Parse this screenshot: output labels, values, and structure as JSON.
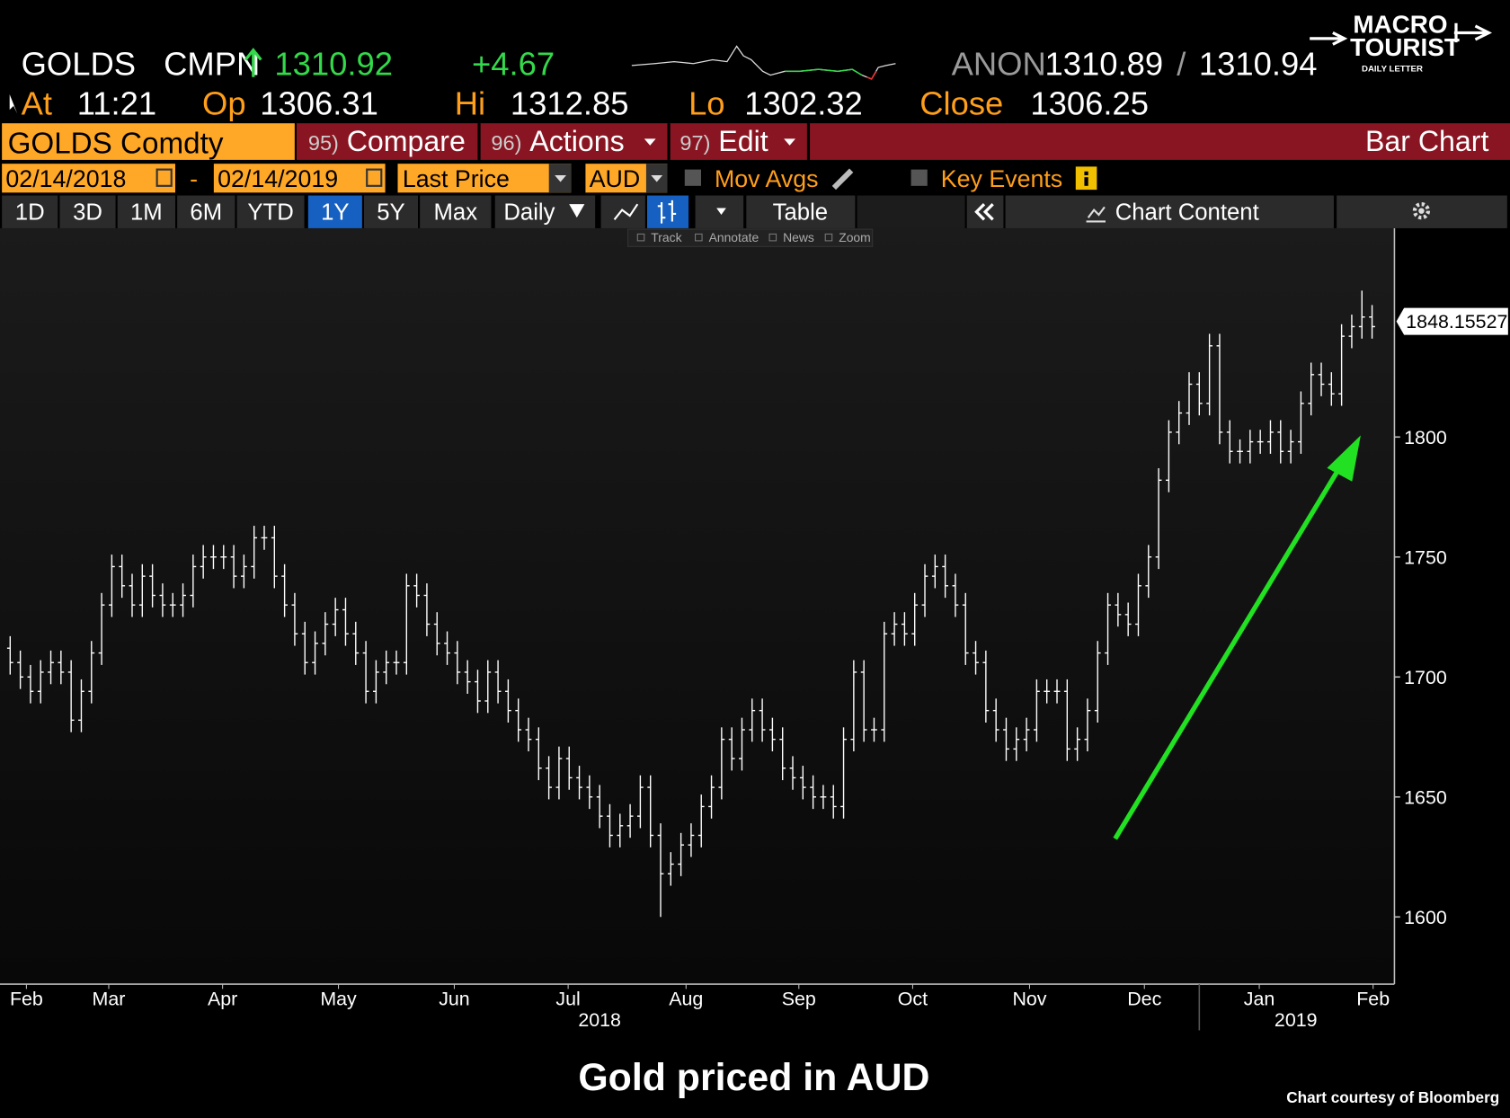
{
  "header": {
    "ticker": "GOLDS",
    "source": "CMPN",
    "last": 1310.92,
    "change": "+4.67",
    "pricing_source": "ANON",
    "bid": 1310.89,
    "separator": "/",
    "ask": 1310.94,
    "at_label": "At",
    "time": "11:21",
    "open_label": "Op",
    "open": 1306.31,
    "hi_label": "Hi",
    "high": 1312.85,
    "lo_label": "Lo",
    "low": 1302.32,
    "close_label": "Close",
    "close": 1306.25
  },
  "logo": {
    "line1": "MACRO",
    "line2": "TOURIST",
    "line3": "DAILY LETTER"
  },
  "toolbar": {
    "security": "GOLDS Comdty",
    "menu": [
      {
        "key": "95)",
        "label": "Compare"
      },
      {
        "key": "96)",
        "label": "Actions"
      },
      {
        "key": "97)",
        "label": "Edit"
      }
    ],
    "chart_type": "Bar Chart",
    "start_date": "02/14/2018",
    "dash": "-",
    "end_date": "02/14/2019",
    "field": "Last Price",
    "currency": "AUD",
    "mov_avgs": "Mov Avgs",
    "key_events": "Key Events",
    "periods": [
      "1D",
      "3D",
      "1M",
      "6M",
      "YTD",
      "1Y",
      "5Y",
      "Max"
    ],
    "active_period": 5,
    "frequency": "Daily",
    "table": "Table",
    "chart_content": "Chart Content",
    "tools": [
      "Track",
      "Annotate",
      "News",
      "Zoom"
    ]
  },
  "chart_data": {
    "type": "ohlc",
    "color": "#ffffff",
    "open": [
      1712,
      1706,
      1700,
      1694,
      1702,
      1706,
      1702,
      1682,
      1694,
      1710,
      1730,
      1746,
      1738,
      1730,
      1742,
      1734,
      1730,
      1730,
      1734,
      1746,
      1750,
      1750,
      1750,
      1742,
      1746,
      1758,
      1758,
      1742,
      1730,
      1718,
      1706,
      1714,
      1722,
      1728,
      1718,
      1710,
      1694,
      1702,
      1706,
      1706,
      1738,
      1734,
      1722,
      1714,
      1710,
      1702,
      1698,
      1690,
      1702,
      1694,
      1686,
      1678,
      1674,
      1662,
      1654,
      1666,
      1658,
      1654,
      1650,
      1642,
      1634,
      1638,
      1642,
      1654,
      1634,
      1618,
      1622,
      1630,
      1634,
      1646,
      1654,
      1674,
      1666,
      1678,
      1686,
      1678,
      1674,
      1662,
      1658,
      1654,
      1650,
      1650,
      1646,
      1674,
      1702,
      1678,
      1678,
      1718,
      1722,
      1718,
      1730,
      1742,
      1746,
      1738,
      1730,
      1710,
      1706,
      1686,
      1678,
      1670,
      1674,
      1678,
      1694,
      1694,
      1694,
      1670,
      1674,
      1686,
      1710,
      1730,
      1726,
      1722,
      1738,
      1750,
      1782,
      1802,
      1810,
      1822,
      1814,
      1838,
      1802,
      1794,
      1794,
      1798,
      1798,
      1802,
      1794,
      1798,
      1814,
      1826,
      1822,
      1818,
      1842,
      1846,
      1850
    ],
    "high": [
      1717,
      1711,
      1705,
      1707,
      1711,
      1711,
      1707,
      1699,
      1715,
      1735,
      1751,
      1751,
      1743,
      1747,
      1747,
      1739,
      1735,
      1739,
      1751,
      1755,
      1755,
      1755,
      1755,
      1751,
      1763,
      1763,
      1763,
      1747,
      1735,
      1723,
      1719,
      1727,
      1733,
      1733,
      1723,
      1715,
      1707,
      1711,
      1711,
      1743,
      1743,
      1739,
      1727,
      1719,
      1715,
      1707,
      1703,
      1707,
      1707,
      1699,
      1691,
      1683,
      1679,
      1667,
      1671,
      1671,
      1663,
      1659,
      1655,
      1647,
      1643,
      1647,
      1659,
      1659,
      1639,
      1627,
      1635,
      1639,
      1651,
      1659,
      1679,
      1679,
      1683,
      1691,
      1691,
      1683,
      1679,
      1667,
      1663,
      1659,
      1655,
      1655,
      1679,
      1707,
      1707,
      1683,
      1723,
      1727,
      1727,
      1735,
      1747,
      1751,
      1751,
      1743,
      1735,
      1715,
      1711,
      1691,
      1683,
      1679,
      1683,
      1699,
      1699,
      1699,
      1699,
      1679,
      1691,
      1715,
      1735,
      1735,
      1731,
      1743,
      1755,
      1787,
      1807,
      1815,
      1827,
      1827,
      1843,
      1843,
      1807,
      1799,
      1803,
      1803,
      1807,
      1807,
      1803,
      1819,
      1831,
      1831,
      1827,
      1847,
      1851,
      1861,
      1855
    ],
    "low": [
      1701,
      1695,
      1689,
      1689,
      1697,
      1697,
      1677,
      1677,
      1689,
      1705,
      1725,
      1733,
      1725,
      1725,
      1729,
      1725,
      1725,
      1725,
      1729,
      1741,
      1745,
      1745,
      1737,
      1737,
      1741,
      1753,
      1737,
      1725,
      1713,
      1701,
      1701,
      1709,
      1717,
      1713,
      1705,
      1689,
      1689,
      1697,
      1701,
      1701,
      1729,
      1717,
      1709,
      1705,
      1697,
      1693,
      1685,
      1685,
      1689,
      1681,
      1673,
      1669,
      1657,
      1649,
      1649,
      1653,
      1649,
      1645,
      1637,
      1629,
      1629,
      1633,
      1637,
      1629,
      1600,
      1613,
      1617,
      1625,
      1629,
      1641,
      1649,
      1661,
      1661,
      1673,
      1673,
      1669,
      1657,
      1653,
      1649,
      1645,
      1645,
      1641,
      1641,
      1669,
      1673,
      1673,
      1673,
      1713,
      1713,
      1713,
      1725,
      1737,
      1733,
      1725,
      1705,
      1701,
      1681,
      1673,
      1665,
      1665,
      1669,
      1673,
      1689,
      1689,
      1665,
      1665,
      1669,
      1681,
      1705,
      1721,
      1717,
      1717,
      1733,
      1745,
      1777,
      1797,
      1805,
      1809,
      1809,
      1797,
      1789,
      1789,
      1789,
      1793,
      1793,
      1789,
      1789,
      1793,
      1809,
      1817,
      1813,
      1813,
      1837,
      1841,
      1841
    ],
    "close": [
      1706,
      1700,
      1694,
      1702,
      1706,
      1702,
      1682,
      1694,
      1710,
      1730,
      1746,
      1738,
      1730,
      1742,
      1734,
      1730,
      1730,
      1734,
      1746,
      1750,
      1750,
      1750,
      1742,
      1746,
      1758,
      1758,
      1742,
      1730,
      1718,
      1706,
      1714,
      1722,
      1728,
      1718,
      1710,
      1694,
      1702,
      1706,
      1706,
      1738,
      1734,
      1722,
      1714,
      1710,
      1702,
      1698,
      1690,
      1702,
      1694,
      1686,
      1678,
      1674,
      1662,
      1654,
      1666,
      1658,
      1654,
      1650,
      1642,
      1634,
      1638,
      1642,
      1654,
      1634,
      1618,
      1622,
      1630,
      1634,
      1646,
      1654,
      1674,
      1666,
      1678,
      1686,
      1678,
      1674,
      1662,
      1658,
      1654,
      1650,
      1650,
      1646,
      1674,
      1702,
      1678,
      1678,
      1718,
      1722,
      1718,
      1730,
      1742,
      1746,
      1738,
      1730,
      1710,
      1706,
      1686,
      1678,
      1670,
      1674,
      1678,
      1694,
      1694,
      1694,
      1670,
      1674,
      1686,
      1710,
      1730,
      1726,
      1722,
      1738,
      1750,
      1782,
      1802,
      1810,
      1822,
      1814,
      1838,
      1802,
      1794,
      1794,
      1798,
      1798,
      1802,
      1794,
      1798,
      1814,
      1826,
      1822,
      1818,
      1842,
      1846,
      1850,
      1846
    ],
    "xlim": [
      -1,
      136.2
    ],
    "ylim": [
      1572,
      1887
    ],
    "yticks": [
      1600,
      1650,
      1700,
      1750,
      1800
    ],
    "xticks": [
      {
        "value": 1.6,
        "label": "Feb"
      },
      {
        "value": 9.7,
        "label": "Mar"
      },
      {
        "value": 20.9,
        "label": "Apr"
      },
      {
        "value": 32.3,
        "label": "May"
      },
      {
        "value": 43.7,
        "label": "Jun"
      },
      {
        "value": 54.9,
        "label": "Jul"
      },
      {
        "value": 66.5,
        "label": "Aug"
      },
      {
        "value": 77.6,
        "label": "Sep"
      },
      {
        "value": 88.8,
        "label": "Oct"
      },
      {
        "value": 100.3,
        "label": "Nov"
      },
      {
        "value": 111.6,
        "label": "Dec"
      },
      {
        "value": 122.9,
        "label": "Jan"
      },
      {
        "value": 134.1,
        "label": "Feb"
      }
    ],
    "year_ticks": [
      {
        "value": 58,
        "label": "2018"
      },
      {
        "value": 126.5,
        "label": "2019"
      }
    ],
    "year_divider": 117,
    "last_price": 1848.15527
  },
  "caption": "Gold priced in AUD",
  "credit": "Chart courtesy of Bloomberg"
}
